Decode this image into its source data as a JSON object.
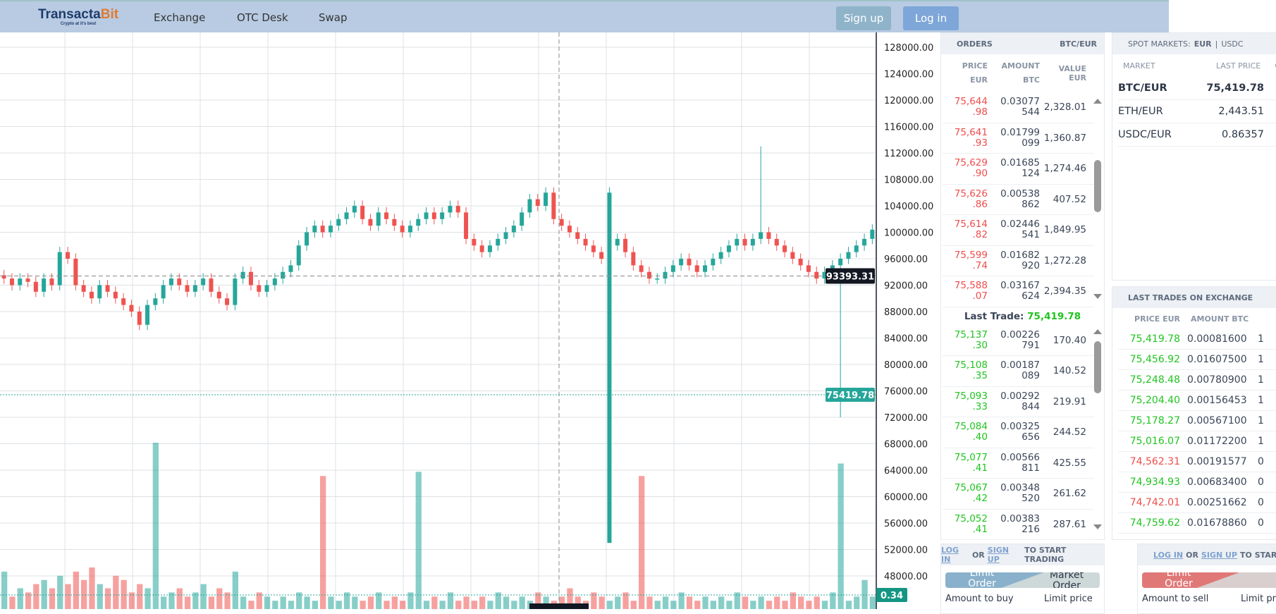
{
  "header": {
    "logo_main": "Transacta",
    "logo_accent": "Bit",
    "logo_tagline": "Crypto at it's best",
    "nav": [
      "Exchange",
      "OTC Desk",
      "Swap"
    ],
    "signup": "Sign up",
    "login": "Log in"
  },
  "colors": {
    "up": "#26a69a",
    "down": "#ef5350",
    "header": "#b8cbe3"
  },
  "chart_data": {
    "type": "candlestick",
    "y_ticks": [
      "128000.00",
      "124000.00",
      "120000.00",
      "116000.00",
      "112000.00",
      "108000.00",
      "104000.00",
      "100000.00",
      "96000.00",
      "92000.00",
      "88000.00",
      "84000.00",
      "80000.00",
      "76000.00",
      "72000.00",
      "68000.00",
      "64000.00",
      "60000.00",
      "56000.00",
      "52000.00",
      "48000.00"
    ],
    "ylim": [
      44000,
      130000
    ],
    "crosshair_price": "93393.31",
    "last_price": "75419.78",
    "volume_label": "0.34",
    "volume_level": 0.34,
    "closes": [
      93,
      92,
      93,
      92.5,
      91,
      93,
      92,
      97,
      96,
      92,
      91,
      90,
      92,
      91,
      90,
      89,
      88,
      86,
      89,
      90,
      92,
      93,
      92,
      91,
      92,
      93,
      91,
      90,
      89,
      93,
      94,
      92,
      91,
      92,
      93,
      94,
      95,
      98,
      100,
      101,
      100,
      101,
      102,
      103,
      104,
      102,
      101,
      103,
      102,
      101,
      100,
      101,
      102,
      103,
      102,
      103,
      104,
      103,
      99,
      98,
      97,
      98,
      99,
      100,
      101,
      103,
      105,
      104,
      106,
      102,
      101,
      100,
      99,
      98,
      97,
      96,
      98,
      99,
      97,
      95,
      94,
      93,
      93,
      94,
      95,
      96,
      95,
      94,
      95,
      96,
      97,
      98,
      99,
      98,
      99,
      100,
      99,
      98,
      97,
      96,
      95,
      94,
      93,
      94,
      95,
      96,
      97,
      98,
      99,
      100.4
    ],
    "extremes": [
      {
        "i": 76,
        "open": 53,
        "close": 106,
        "low": 53
      },
      {
        "i": 95,
        "high": 113
      },
      {
        "i": 105,
        "low": 72
      }
    ],
    "volumes": [
      0.9,
      0.3,
      0.5,
      0.4,
      0.6,
      0.7,
      0.5,
      0.8,
      0.6,
      0.9,
      0.7,
      1.0,
      0.6,
      0.5,
      0.8,
      0.7,
      0.4,
      0.6,
      0.5,
      4.0,
      0.3,
      0.4,
      0.5,
      0.3,
      0.4,
      0.6,
      0.3,
      0.5,
      0.4,
      0.9,
      0.3,
      0.2,
      0.4,
      0.3,
      0.2,
      0.3,
      0.2,
      0.4,
      0.3,
      0.2,
      3.2,
      0.3,
      0.2,
      0.4,
      0.3,
      0.2,
      0.3,
      0.4,
      0.2,
      0.3,
      0.2,
      0.4,
      3.3,
      0.2,
      0.3,
      0.2,
      0.4,
      0.2,
      0.3,
      0.2,
      0.3,
      0.2,
      0.4,
      0.3,
      0.2,
      0.3,
      0.2,
      0.4,
      0.3,
      0.2,
      0.3,
      0.5,
      0.3,
      0.2,
      0.4,
      0.3,
      0.2,
      0.3,
      0.4,
      0.2,
      3.2,
      0.3,
      0.2,
      0.3,
      0.2,
      0.4,
      0.3,
      0.2,
      0.3,
      0.2,
      0.3,
      0.2,
      0.4,
      0.3,
      0.2,
      0.3,
      0.2,
      0.3,
      0.2,
      0.4,
      0.3,
      0.2,
      0.3,
      0.2,
      0.4,
      3.5,
      0.2,
      0.3,
      0.7,
      0.3
    ]
  },
  "orders": {
    "title": "ORDERS",
    "pair": "BTC/EUR",
    "col_price": "PRICE",
    "col_price_unit": "EUR",
    "col_amount": "AMOUNT",
    "col_amount_unit": "BTC",
    "col_value": "VALUE EUR",
    "asks": [
      [
        "75,644",
        ".98",
        "0.03077",
        "544",
        "2,328.01"
      ],
      [
        "75,641",
        ".93",
        "0.01799",
        "099",
        "1,360.87"
      ],
      [
        "75,629",
        ".90",
        "0.01685",
        "124",
        "1,274.46"
      ],
      [
        "75,626",
        ".86",
        "0.00538",
        "862",
        "407.52"
      ],
      [
        "75,614",
        ".82",
        "0.02446",
        "541",
        "1,849.95"
      ],
      [
        "75,599",
        ".74",
        "0.01682",
        "920",
        "1,272.28"
      ],
      [
        "75,588",
        ".07",
        "0.03167",
        "624",
        "2,394.35"
      ]
    ],
    "last_trade_label": "Last Trade:",
    "last_trade_value": "75,419.78",
    "bids": [
      [
        "75,137",
        ".30",
        "0.00226",
        "791",
        "170.40"
      ],
      [
        "75,108",
        ".35",
        "0.00187",
        "089",
        "140.52"
      ],
      [
        "75,093",
        ".33",
        "0.00292",
        "844",
        "219.91"
      ],
      [
        "75,084",
        ".40",
        "0.00325",
        "656",
        "244.52"
      ],
      [
        "75,077",
        ".41",
        "0.00566",
        "811",
        "425.55"
      ],
      [
        "75,067",
        ".42",
        "0.00348",
        "520",
        "261.62"
      ],
      [
        "75,052",
        ".41",
        "0.00383",
        "216",
        "287.61"
      ]
    ]
  },
  "spot": {
    "title": "SPOT MARKETS:",
    "eur": "EUR",
    "sep": "|",
    "usdc": "USDC",
    "col_market": "MARKET",
    "col_last": "LAST PRICE",
    "col_third": "C",
    "rows": [
      [
        "BTC/EUR",
        "75,419.78"
      ],
      [
        "ETH/EUR",
        "2,443.51"
      ],
      [
        "USDC/EUR",
        "0.86357"
      ]
    ]
  },
  "trades": {
    "title": "LAST TRADES ON EXCHANGE",
    "col_price": "PRICE EUR",
    "col_amount": "AMOUNT BTC",
    "rows": [
      [
        "75,419.78",
        "0.00081600",
        "1",
        "up"
      ],
      [
        "75,456.92",
        "0.01607500",
        "1",
        "up"
      ],
      [
        "75,248.48",
        "0.00780900",
        "1",
        "up"
      ],
      [
        "75,204.40",
        "0.00156453",
        "1",
        "up"
      ],
      [
        "75,178.27",
        "0.00567100",
        "1",
        "up"
      ],
      [
        "75,016.07",
        "0.01172200",
        "1",
        "up"
      ],
      [
        "74,562.31",
        "0.00191577",
        "0",
        "down"
      ],
      [
        "74,934.93",
        "0.00683400",
        "0",
        "up"
      ],
      [
        "74,742.01",
        "0.00251662",
        "0",
        "down"
      ],
      [
        "74,759.62",
        "0.01678860",
        "0",
        "up"
      ]
    ]
  },
  "buy": {
    "login": "LOG IN",
    "or": "OR",
    "signup": "SIGN UP",
    "rest": "TO START TRADING",
    "limit": "Limit Order",
    "market": "Market Order",
    "amount": "Amount to buy",
    "price": "Limit price"
  },
  "sell": {
    "login": "LOG IN",
    "or": "OR",
    "signup": "SIGN UP",
    "rest": "TO START",
    "limit": "Limit Order",
    "amount": "Amount to sell",
    "price": "Limit pri"
  }
}
